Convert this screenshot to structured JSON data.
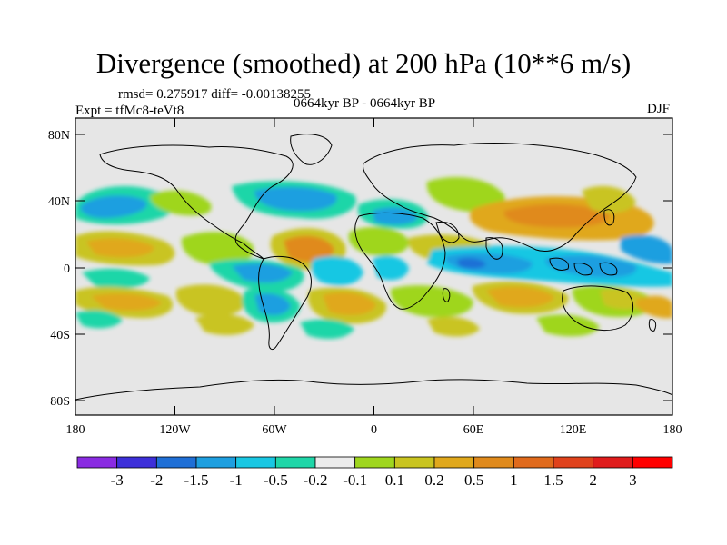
{
  "title": "Divergence (smoothed) at 200 hPa (10**6 m/s)",
  "stats": "rmsd= 0.275917 diff= -0.00138255",
  "experiment": "Expt = tfMc8-teVt8",
  "period": "0664kyr BP - 0664kyr BP",
  "season": "DJF",
  "axes": {
    "lat_ticks": [
      "80N",
      "40N",
      "0",
      "40S",
      "80S"
    ],
    "lon_ticks": [
      "180",
      "120W",
      "60W",
      "0",
      "60E",
      "120E",
      "180"
    ]
  },
  "colorbar": {
    "labels": [
      "-3",
      "-2",
      "-1.5",
      "-1",
      "-0.5",
      "-0.2",
      "-0.1",
      "0.1",
      "0.2",
      "0.5",
      "1",
      "1.5",
      "2",
      "3"
    ],
    "colors": [
      "#8a2be2",
      "#3d2fd9",
      "#1f6fd6",
      "#1e9fe0",
      "#19c7e3",
      "#1fd6a8",
      "#ececec",
      "#9fd61e",
      "#c9c420",
      "#e0a81c",
      "#e08a1c",
      "#e06a1c",
      "#e0421c",
      "#e01c1c",
      "#ff0000"
    ]
  },
  "colors": {
    "background": "#ffffff",
    "land_neutral": "#e6e6e6",
    "coastline": "#000000"
  }
}
